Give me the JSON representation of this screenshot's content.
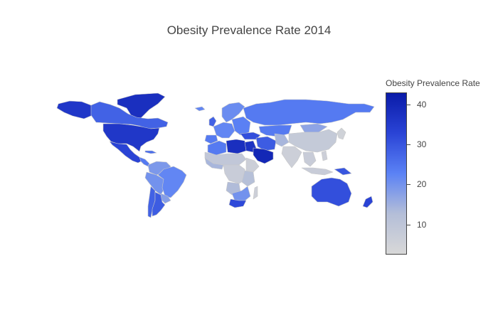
{
  "title": "Obesity Prevalence Rate 2014",
  "colorbar": {
    "title": "Obesity Prevalence Rate",
    "min": 2.5,
    "max": 43,
    "ticks": [
      {
        "label": "40",
        "value": 40
      },
      {
        "label": "30",
        "value": 30
      },
      {
        "label": "20",
        "value": 20
      },
      {
        "label": "10",
        "value": 10
      }
    ],
    "colors": [
      "#0a1ba8",
      "#2a44d6",
      "#5b82f5",
      "#b4bed8",
      "#d8d8d8"
    ]
  },
  "chart_data": {
    "type": "choropleth",
    "title": "Obesity Prevalence Rate 2014",
    "color_scale_range": [
      2.5,
      43
    ],
    "countries": [
      {
        "name": "Greenland",
        "value": 38
      },
      {
        "name": "Canada",
        "value": 28
      },
      {
        "name": "United States",
        "value": 36
      },
      {
        "name": "Mexico",
        "value": 33
      },
      {
        "name": "Brazil",
        "value": 22
      },
      {
        "name": "Argentina",
        "value": 29
      },
      {
        "name": "Russia",
        "value": 24
      },
      {
        "name": "China",
        "value": 8
      },
      {
        "name": "Libya",
        "value": 38
      },
      {
        "name": "Egypt",
        "value": 37
      },
      {
        "name": "Saudi Arabia",
        "value": 40
      },
      {
        "name": "South Africa",
        "value": 32
      },
      {
        "name": "Australia",
        "value": 31
      },
      {
        "name": "New Zealand",
        "value": 33
      },
      {
        "name": "India",
        "value": 6
      },
      {
        "name": "Indonesia",
        "value": 7
      },
      {
        "name": "Ethiopia",
        "value": 6
      },
      {
        "name": "Papua New Guinea",
        "value": 30
      }
    ]
  }
}
